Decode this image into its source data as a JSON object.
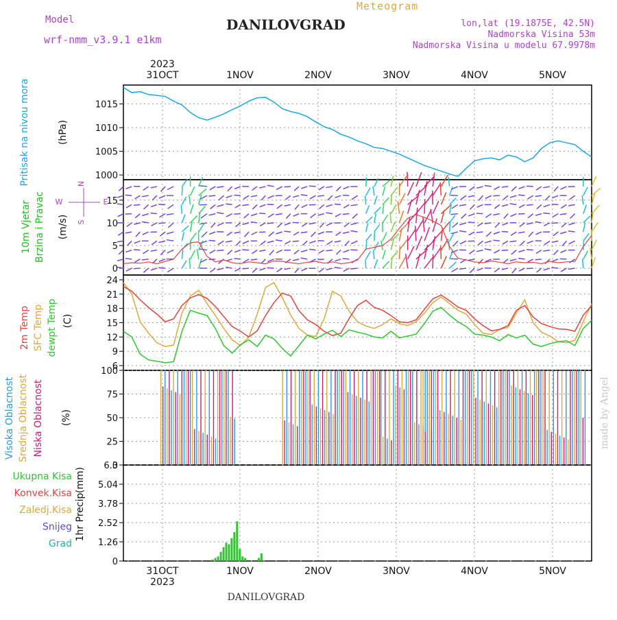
{
  "header": {
    "model_label": "Model",
    "model_name": "wrf-nmm_v3.9.1  e1km",
    "station": "DANILOVGRAD",
    "product": "Meteogram",
    "coords": "lon,lat (19.1875E, 42.5N)",
    "altitude": "Nadmorska Visina 53m",
    "model_altitude": "Nadmorska Visina u modelu 67.9978m",
    "footer_station": "DANILOVGRAD",
    "watermark": "made by Angel"
  },
  "colors": {
    "pressure": "#1aa6e6",
    "temp2m": "#e8403c",
    "sfc": "#e0a83a",
    "dew": "#2ec82e",
    "high_cloud": "#2a9ae0",
    "mid_cloud": "#e0a83a",
    "low_cloud": "#c0207a",
    "total_precip": "#33c233",
    "conv_precip": "#e8403c",
    "snow": "#5050d0",
    "grad": "#20b0b0",
    "wind_label": "#20c020",
    "wind_dir": "#b040d0",
    "cloud_label_high": "#2a9ae0"
  },
  "chart_data": [
    {
      "type": "line",
      "panel": "pressure",
      "x_ticks": [
        "31OCT",
        "1NOV",
        "2NOV",
        "3NOV",
        "4NOV",
        "5NOV"
      ],
      "year": "2023",
      "ylabel": [
        "Pritisak na nivou mora",
        "(hPa)"
      ],
      "yticks": [
        1000,
        1005,
        1010,
        1015
      ],
      "ylim": [
        999,
        1019
      ],
      "series": [
        {
          "values": [
            1018.5,
            1017.4,
            1017.6,
            1017.0,
            1016.8,
            1016.6,
            1015.6,
            1014.8,
            1013.2,
            1012.1,
            1011.6,
            1012.2,
            1012.9,
            1013.8,
            1014.6,
            1015.6,
            1016.3,
            1016.4,
            1015.4,
            1014.0,
            1013.4,
            1013.0,
            1012.3,
            1011.2,
            1010.2,
            1009.6,
            1008.6,
            1008.0,
            1007.2,
            1006.6,
            1005.8,
            1005.6,
            1005.0,
            1004.4,
            1003.6,
            1002.8,
            1002.0,
            1001.4,
            1000.8,
            1000.2,
            999.7,
            1001.4,
            1003.0,
            1003.4,
            1003.6,
            1003.2,
            1004.2,
            1003.8,
            1002.8,
            1003.6,
            1005.6,
            1006.8,
            1007.2,
            1006.8,
            1006.4,
            1005.0,
            1003.8
          ]
        }
      ]
    },
    {
      "type": "line",
      "panel": "wind",
      "ylabel": [
        "10m Vjetar",
        "Brzina i Pravac",
        "(m/s)"
      ],
      "compass": {
        "n": "N",
        "s": "S",
        "w": "W",
        "e": "E"
      },
      "yticks": [
        0,
        5,
        10,
        15
      ],
      "ylim": [
        -1.5,
        19.5
      ],
      "series": [
        {
          "name": "speed",
          "values": [
            1.0,
            1.2,
            1.1,
            1.4,
            1.0,
            1.5,
            2.0,
            4.2,
            5.6,
            5.8,
            2.6,
            1.4,
            1.8,
            1.2,
            1.0,
            1.4,
            1.2,
            1.0,
            1.6,
            1.5,
            1.2,
            1.0,
            1.3,
            1.5,
            1.1,
            1.4,
            1.0,
            1.2,
            1.8,
            4.2,
            4.6,
            5.0,
            6.4,
            8.8,
            11.0,
            11.8,
            11.2,
            10.4,
            9.4,
            4.8,
            2.2,
            1.8,
            1.4,
            1.2,
            1.6,
            1.3,
            1.0,
            1.4,
            1.2,
            1.3,
            1.0,
            1.5,
            1.2,
            1.4,
            1.5,
            4.8,
            7.2
          ]
        }
      ]
    },
    {
      "type": "line",
      "panel": "temperature",
      "ylabel": [
        "2m Temp",
        "SFC Temp",
        "dewpt Temp",
        "(C)"
      ],
      "yticks": [
        6,
        9,
        12,
        15,
        18,
        21,
        24
      ],
      "ylim": [
        5,
        25
      ],
      "series": [
        {
          "name": "2m Temp",
          "values": [
            22.6,
            21.6,
            19.8,
            18.2,
            16.8,
            15.2,
            15.8,
            18.6,
            20.2,
            20.9,
            20.1,
            18.4,
            16.3,
            14.2,
            13.2,
            12.0,
            13.3,
            16.5,
            19.2,
            21.2,
            20.6,
            17.5,
            15.6,
            14.6,
            13.2,
            12.3,
            12.8,
            15.9,
            18.6,
            19.7,
            18.2,
            17.6,
            16.5,
            15.2,
            15.0,
            15.6,
            17.8,
            20.0,
            20.8,
            19.6,
            18.3,
            17.6,
            15.8,
            14.4,
            13.3,
            13.6,
            14.4,
            17.6,
            18.6,
            16.2,
            14.8,
            14.2,
            13.7,
            13.6,
            13.2,
            16.6,
            18.5
          ]
        },
        {
          "name": "SFC Temp",
          "values": [
            23.4,
            21.0,
            15.2,
            12.8,
            10.8,
            10.0,
            10.3,
            17.0,
            20.6,
            21.8,
            19.0,
            16.5,
            13.8,
            11.4,
            10.2,
            12.0,
            16.8,
            22.4,
            23.4,
            20.3,
            16.6,
            13.8,
            12.4,
            12.1,
            15.8,
            21.6,
            20.6,
            17.4,
            15.2,
            14.3,
            13.8,
            14.6,
            15.8,
            14.8,
            14.4,
            15.2,
            17.0,
            19.2,
            20.4,
            19.0,
            17.6,
            16.8,
            14.6,
            12.8,
            12.5,
            13.6,
            14.0,
            17.0,
            19.8,
            15.0,
            13.0,
            12.2,
            11.0,
            10.8,
            11.3,
            15.2,
            19.0
          ]
        },
        {
          "name": "dewpt Temp",
          "values": [
            13.2,
            12.0,
            8.4,
            7.2,
            6.9,
            6.6,
            6.8,
            13.2,
            17.6,
            17.0,
            16.5,
            13.8,
            10.2,
            8.6,
            10.4,
            11.4,
            10.0,
            12.4,
            11.6,
            9.6,
            8.0,
            10.2,
            12.4,
            11.6,
            12.6,
            13.4,
            12.1,
            13.5,
            13.0,
            12.6,
            12.0,
            11.8,
            13.2,
            11.8,
            12.2,
            12.6,
            14.8,
            17.4,
            18.2,
            16.6,
            15.2,
            14.2,
            12.6,
            12.4,
            12.0,
            11.2,
            12.5,
            11.8,
            12.4,
            10.5,
            10.0,
            10.6,
            11.0,
            11.2,
            10.2,
            13.8,
            15.5
          ]
        }
      ]
    },
    {
      "type": "bar",
      "panel": "clouds",
      "ylabel": [
        "Visoka Oblacnost",
        "Srednja Oblacnost",
        "Niska Oblacnost",
        "(%)"
      ],
      "yticks": [
        0,
        25,
        50,
        75,
        100
      ],
      "ylim": [
        0,
        100
      ],
      "series": [
        {
          "name": "Visoka Oblacnost",
          "values": [
            0,
            0,
            0,
            0,
            0,
            0,
            0,
            0,
            0,
            0,
            0,
            0,
            0,
            0,
            0,
            0,
            0,
            0,
            0,
            0,
            0,
            0,
            0,
            0,
            0,
            0,
            0,
            0,
            0,
            0,
            0,
            0,
            0,
            0,
            0,
            0,
            0,
            0,
            0,
            0,
            0,
            0,
            0,
            0,
            0,
            0,
            0,
            0,
            0,
            0,
            0,
            0,
            0,
            0,
            0,
            0,
            0,
            0,
            0,
            0,
            0,
            0,
            0,
            0,
            0,
            0,
            0,
            0,
            0,
            0,
            0,
            0,
            0,
            0,
            0,
            0,
            0,
            0,
            0,
            0,
            0,
            0,
            0,
            0,
            0,
            0,
            0,
            0,
            0,
            0,
            0,
            0,
            0,
            0,
            0,
            0,
            0,
            0,
            0,
            0,
            0,
            0,
            0,
            0,
            0,
            0,
            0,
            0,
            0,
            0,
            0,
            0,
            0,
            0,
            0,
            0,
            0,
            0,
            0,
            0,
            0,
            0,
            0,
            0,
            0,
            0,
            0,
            0,
            0,
            0,
            0,
            0,
            0,
            0,
            0,
            0,
            0,
            0,
            0,
            0,
            0,
            0,
            0,
            0,
            0,
            0,
            0,
            0,
            0,
            0,
            0,
            0,
            0,
            0,
            0,
            0,
            0,
            0,
            0,
            0,
            0,
            0,
            0,
            0,
            0,
            0,
            0,
            0,
            0,
            0,
            0
          ]
        },
        {
          "name": "Srednja Oblacnost",
          "values": []
        },
        {
          "name": "Niska Oblacnost",
          "values": []
        }
      ]
    },
    {
      "type": "bar",
      "panel": "precipitation",
      "ylabel": [
        "1hr Precip",
        "(mm)"
      ],
      "legend": [
        "Ukupna Kisa",
        "Konvek.Kisa",
        "Zaledj.Kisa",
        "Snijeg",
        "Grad"
      ],
      "yticks": [
        0,
        1.26,
        2.52,
        3.78,
        5.04,
        6.3
      ],
      "ytick_labels": [
        "0",
        "1.26",
        "2.52",
        "3.78",
        "5.04",
        "6.3"
      ],
      "ylim": [
        0,
        6.3
      ],
      "series": [
        {
          "name": "Ukupna Kisa",
          "values": [
            0,
            0,
            0,
            0,
            0,
            0,
            0,
            0,
            0,
            0,
            0,
            0,
            0,
            0,
            0,
            0,
            0,
            0,
            0,
            0,
            0,
            0,
            0,
            0,
            0,
            0,
            0,
            0,
            0,
            0,
            0,
            0,
            0,
            0.1,
            0.2,
            0.3,
            0.6,
            0.9,
            1.2,
            1.1,
            1.5,
            1.9,
            2.6,
            0.8,
            0.3,
            0.2,
            0,
            0,
            0,
            0,
            0.2,
            0.5,
            0,
            0,
            0,
            0,
            0,
            0,
            0,
            0,
            0,
            0,
            0,
            0,
            0,
            0,
            0,
            0,
            0,
            0,
            0,
            0,
            0,
            0,
            0,
            0,
            0,
            0,
            0,
            0,
            0,
            0,
            0,
            0,
            0,
            0,
            0,
            0,
            0,
            0,
            0,
            0,
            0,
            0,
            0,
            0,
            0,
            0,
            0,
            0,
            0,
            0,
            0,
            0,
            0,
            0,
            0,
            0,
            0,
            0,
            0,
            0,
            0,
            0,
            0,
            0,
            0,
            0,
            0,
            0,
            0,
            0,
            0,
            0,
            0,
            0,
            0,
            0,
            0,
            0,
            0,
            0,
            0,
            0,
            0,
            0,
            0,
            0,
            0,
            0,
            0,
            0,
            0,
            0,
            0,
            0,
            0,
            0,
            0,
            0,
            0,
            0,
            0,
            0,
            0,
            0,
            0,
            0,
            0,
            0,
            0,
            0,
            0,
            0,
            0,
            0,
            0,
            0,
            0,
            0,
            0,
            0,
            0,
            0
          ]
        }
      ]
    }
  ]
}
